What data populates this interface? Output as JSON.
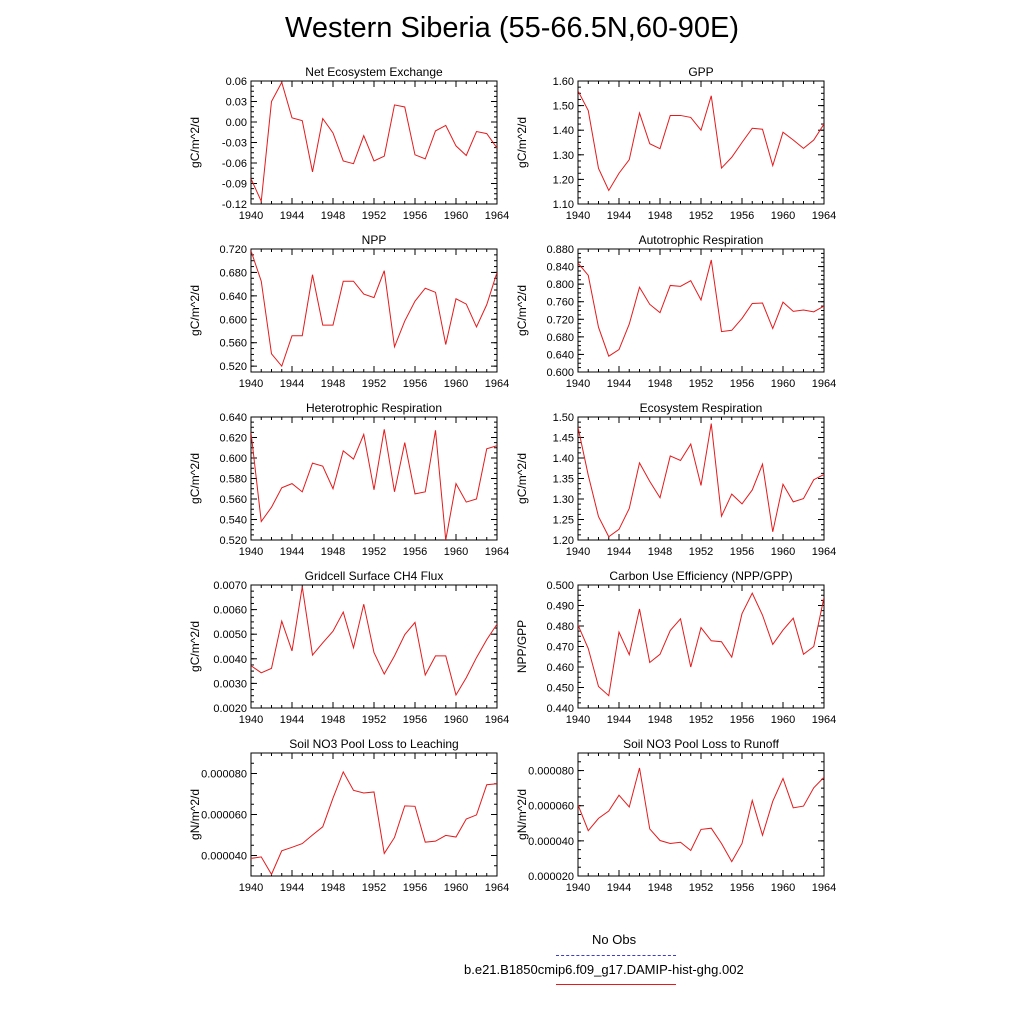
{
  "title": "Western Siberia (55-66.5N,60-90E)",
  "colors": {
    "model_line": "#e41a1c",
    "obs_line": "#3b3bcc",
    "axes": "#000000"
  },
  "legend": {
    "obs_label": "No Obs",
    "model_label": "b.e21.B1850cmip6.f09_g17.DAMIP-hist-ghg.002"
  },
  "chart_data": [
    {
      "type": "line",
      "title": "Net Ecosystem Exchange",
      "ylabel": "gC/m^2/d",
      "xlim": [
        1940,
        1964
      ],
      "xticks": [
        1940,
        1944,
        1948,
        1952,
        1956,
        1960,
        1964
      ],
      "xtick_labels": [
        "1940",
        "1944",
        "1948",
        "1952",
        "1956",
        "1960",
        "1964"
      ],
      "ylim": [
        -0.12,
        0.06
      ],
      "yticks": [
        -0.12,
        -0.09,
        -0.06,
        -0.03,
        0.0,
        0.03,
        0.06
      ],
      "ytick_labels": [
        "-0.12",
        "-0.09",
        "-0.06",
        "-0.03",
        "0.00",
        "0.03",
        "0.06"
      ],
      "x": [
        1940,
        1941,
        1942,
        1943,
        1944,
        1945,
        1946,
        1947,
        1948,
        1949,
        1950,
        1951,
        1952,
        1953,
        1954,
        1955,
        1956,
        1957,
        1958,
        1959,
        1960,
        1961,
        1962,
        1963,
        1964
      ],
      "values": [
        -0.083,
        -0.116,
        0.03,
        0.058,
        0.006,
        0.002,
        -0.073,
        0.005,
        -0.016,
        -0.057,
        -0.061,
        -0.02,
        -0.057,
        -0.05,
        0.025,
        0.022,
        -0.048,
        -0.054,
        -0.013,
        -0.005,
        -0.035,
        -0.049,
        -0.014,
        -0.017,
        -0.038
      ]
    },
    {
      "type": "line",
      "title": "GPP",
      "ylabel": "gC/m^2/d",
      "xlim": [
        1940,
        1964
      ],
      "xticks": [
        1940,
        1944,
        1948,
        1952,
        1956,
        1960,
        1964
      ],
      "xtick_labels": [
        "1940",
        "1944",
        "1948",
        "1952",
        "1956",
        "1960",
        "1964"
      ],
      "ylim": [
        1.1,
        1.6
      ],
      "yticks": [
        1.1,
        1.2,
        1.3,
        1.4,
        1.5,
        1.6
      ],
      "ytick_labels": [
        "1.10",
        "1.20",
        "1.30",
        "1.40",
        "1.50",
        "1.60"
      ],
      "x": [
        1940,
        1941,
        1942,
        1943,
        1944,
        1945,
        1946,
        1947,
        1948,
        1949,
        1950,
        1951,
        1952,
        1953,
        1954,
        1955,
        1956,
        1957,
        1958,
        1959,
        1960,
        1961,
        1962,
        1963,
        1964
      ],
      "values": [
        1.56,
        1.48,
        1.245,
        1.155,
        1.225,
        1.28,
        1.47,
        1.345,
        1.325,
        1.46,
        1.46,
        1.452,
        1.4,
        1.54,
        1.246,
        1.29,
        1.35,
        1.408,
        1.404,
        1.256,
        1.392,
        1.36,
        1.326,
        1.36,
        1.425
      ]
    },
    {
      "type": "line",
      "title": "NPP",
      "ylabel": "gC/m^2/d",
      "xlim": [
        1940,
        1964
      ],
      "xticks": [
        1940,
        1944,
        1948,
        1952,
        1956,
        1960,
        1964
      ],
      "xtick_labels": [
        "1940",
        "1944",
        "1948",
        "1952",
        "1956",
        "1960",
        "1964"
      ],
      "ylim": [
        0.51,
        0.72
      ],
      "yticks": [
        0.52,
        0.56,
        0.6,
        0.64,
        0.68,
        0.72
      ],
      "ytick_labels": [
        "0.520",
        "0.560",
        "0.600",
        "0.640",
        "0.680",
        "0.720"
      ],
      "x": [
        1940,
        1941,
        1942,
        1943,
        1944,
        1945,
        1946,
        1947,
        1948,
        1949,
        1950,
        1951,
        1952,
        1953,
        1954,
        1955,
        1956,
        1957,
        1958,
        1959,
        1960,
        1961,
        1962,
        1963,
        1964
      ],
      "values": [
        0.717,
        0.665,
        0.541,
        0.52,
        0.572,
        0.572,
        0.676,
        0.59,
        0.59,
        0.665,
        0.665,
        0.643,
        0.637,
        0.683,
        0.553,
        0.597,
        0.631,
        0.653,
        0.646,
        0.557,
        0.635,
        0.626,
        0.587,
        0.625,
        0.68
      ]
    },
    {
      "type": "line",
      "title": "Autotrophic Respiration",
      "ylabel": "gC/m^2/d",
      "xlim": [
        1940,
        1964
      ],
      "xticks": [
        1940,
        1944,
        1948,
        1952,
        1956,
        1960,
        1964
      ],
      "xtick_labels": [
        "1940",
        "1944",
        "1948",
        "1952",
        "1956",
        "1960",
        "1964"
      ],
      "ylim": [
        0.6,
        0.88
      ],
      "yticks": [
        0.6,
        0.64,
        0.68,
        0.72,
        0.76,
        0.8,
        0.84,
        0.88
      ],
      "ytick_labels": [
        "0.600",
        "0.640",
        "0.680",
        "0.720",
        "0.760",
        "0.800",
        "0.840",
        "0.880"
      ],
      "x": [
        1940,
        1941,
        1942,
        1943,
        1944,
        1945,
        1946,
        1947,
        1948,
        1949,
        1950,
        1951,
        1952,
        1953,
        1954,
        1955,
        1956,
        1957,
        1958,
        1959,
        1960,
        1961,
        1962,
        1963,
        1964
      ],
      "values": [
        0.848,
        0.82,
        0.702,
        0.636,
        0.651,
        0.709,
        0.793,
        0.754,
        0.735,
        0.797,
        0.795,
        0.808,
        0.764,
        0.855,
        0.692,
        0.695,
        0.722,
        0.756,
        0.757,
        0.699,
        0.759,
        0.738,
        0.741,
        0.737,
        0.75
      ]
    },
    {
      "type": "line",
      "title": "Heterotrophic Respiration",
      "ylabel": "gC/m^2/d",
      "xlim": [
        1940,
        1964
      ],
      "xticks": [
        1940,
        1944,
        1948,
        1952,
        1956,
        1960,
        1964
      ],
      "xtick_labels": [
        "1940",
        "1944",
        "1948",
        "1952",
        "1956",
        "1960",
        "1964"
      ],
      "ylim": [
        0.52,
        0.64
      ],
      "yticks": [
        0.52,
        0.54,
        0.56,
        0.58,
        0.6,
        0.62,
        0.64
      ],
      "ytick_labels": [
        "0.520",
        "0.540",
        "0.560",
        "0.580",
        "0.600",
        "0.620",
        "0.640"
      ],
      "x": [
        1940,
        1941,
        1942,
        1943,
        1944,
        1945,
        1946,
        1947,
        1948,
        1949,
        1950,
        1951,
        1952,
        1953,
        1954,
        1955,
        1956,
        1957,
        1958,
        1959,
        1960,
        1961,
        1962,
        1963,
        1964
      ],
      "values": [
        0.625,
        0.538,
        0.552,
        0.571,
        0.575,
        0.567,
        0.595,
        0.592,
        0.57,
        0.607,
        0.599,
        0.623,
        0.569,
        0.628,
        0.567,
        0.615,
        0.565,
        0.567,
        0.627,
        0.52,
        0.575,
        0.557,
        0.56,
        0.609,
        0.612
      ]
    },
    {
      "type": "line",
      "title": "Ecosystem Respiration",
      "ylabel": "gC/m^2/d",
      "xlim": [
        1940,
        1964
      ],
      "xticks": [
        1940,
        1944,
        1948,
        1952,
        1956,
        1960,
        1964
      ],
      "xtick_labels": [
        "1940",
        "1944",
        "1948",
        "1952",
        "1956",
        "1960",
        "1964"
      ],
      "ylim": [
        1.2,
        1.5
      ],
      "yticks": [
        1.2,
        1.25,
        1.3,
        1.35,
        1.4,
        1.45,
        1.5
      ],
      "ytick_labels": [
        "1.20",
        "1.25",
        "1.30",
        "1.35",
        "1.40",
        "1.45",
        "1.50"
      ],
      "x": [
        1940,
        1941,
        1942,
        1943,
        1944,
        1945,
        1946,
        1947,
        1948,
        1949,
        1950,
        1951,
        1952,
        1953,
        1954,
        1955,
        1956,
        1957,
        1958,
        1959,
        1960,
        1961,
        1962,
        1963,
        1964
      ],
      "values": [
        1.475,
        1.358,
        1.257,
        1.208,
        1.226,
        1.277,
        1.388,
        1.343,
        1.303,
        1.405,
        1.394,
        1.434,
        1.333,
        1.484,
        1.258,
        1.312,
        1.288,
        1.322,
        1.385,
        1.22,
        1.336,
        1.293,
        1.301,
        1.347,
        1.36
      ]
    },
    {
      "type": "line",
      "title": "Gridcell Surface CH4 Flux",
      "ylabel": "gC/m^2/d",
      "xlim": [
        1940,
        1964
      ],
      "xticks": [
        1940,
        1944,
        1948,
        1952,
        1956,
        1960,
        1964
      ],
      "xtick_labels": [
        "1940",
        "1944",
        "1948",
        "1952",
        "1956",
        "1960",
        "1964"
      ],
      "ylim": [
        0.002,
        0.007
      ],
      "yticks": [
        0.002,
        0.003,
        0.004,
        0.005,
        0.006,
        0.007
      ],
      "ytick_labels": [
        "0.0020",
        "0.0030",
        "0.0040",
        "0.0050",
        "0.0060",
        "0.0070"
      ],
      "x": [
        1940,
        1941,
        1942,
        1943,
        1944,
        1945,
        1946,
        1947,
        1948,
        1949,
        1950,
        1951,
        1952,
        1953,
        1954,
        1955,
        1956,
        1957,
        1958,
        1959,
        1960,
        1961,
        1962,
        1963,
        1964
      ],
      "values": [
        0.00372,
        0.00343,
        0.00361,
        0.00553,
        0.00432,
        0.00693,
        0.00415,
        0.00465,
        0.00512,
        0.0059,
        0.00445,
        0.00622,
        0.00425,
        0.00338,
        0.00412,
        0.00498,
        0.00548,
        0.00334,
        0.00412,
        0.00412,
        0.00253,
        0.00323,
        0.00405,
        0.00478,
        0.00541
      ]
    },
    {
      "type": "line",
      "title": "Carbon Use Efficiency (NPP/GPP)",
      "ylabel": "NPP/GPP",
      "xlim": [
        1940,
        1964
      ],
      "xticks": [
        1940,
        1944,
        1948,
        1952,
        1956,
        1960,
        1964
      ],
      "xtick_labels": [
        "1940",
        "1944",
        "1948",
        "1952",
        "1956",
        "1960",
        "1964"
      ],
      "ylim": [
        0.44,
        0.5
      ],
      "yticks": [
        0.44,
        0.45,
        0.46,
        0.47,
        0.48,
        0.49,
        0.5
      ],
      "ytick_labels": [
        "0.440",
        "0.450",
        "0.460",
        "0.470",
        "0.480",
        "0.490",
        "0.500"
      ],
      "x": [
        1940,
        1941,
        1942,
        1943,
        1944,
        1945,
        1946,
        1947,
        1948,
        1949,
        1950,
        1951,
        1952,
        1953,
        1954,
        1955,
        1956,
        1957,
        1958,
        1959,
        1960,
        1961,
        1962,
        1963,
        1964
      ],
      "values": [
        0.4805,
        0.469,
        0.4505,
        0.446,
        0.477,
        0.466,
        0.4883,
        0.4622,
        0.4662,
        0.4778,
        0.4835,
        0.46,
        0.4792,
        0.4728,
        0.4723,
        0.4648,
        0.486,
        0.496,
        0.4853,
        0.471,
        0.478,
        0.4838,
        0.4662,
        0.47,
        0.494
      ]
    },
    {
      "type": "line",
      "title": "Soil NO3 Pool Loss to Leaching",
      "ylabel": "gN/m^2/d",
      "xlim": [
        1940,
        1964
      ],
      "xticks": [
        1940,
        1944,
        1948,
        1952,
        1956,
        1960,
        1964
      ],
      "xtick_labels": [
        "1940",
        "1944",
        "1948",
        "1952",
        "1956",
        "1960",
        "1964"
      ],
      "ylim": [
        3e-05,
        9e-05
      ],
      "yticks": [
        4e-05,
        6e-05,
        8e-05
      ],
      "ytick_labels": [
        "0.000040",
        "0.000060",
        "0.000080"
      ],
      "x": [
        1940,
        1941,
        1942,
        1943,
        1944,
        1945,
        1946,
        1947,
        1948,
        1949,
        1950,
        1951,
        1952,
        1953,
        1954,
        1955,
        1956,
        1957,
        1958,
        1959,
        1960,
        1961,
        1962,
        1963,
        1964
      ],
      "values": [
        3.86e-05,
        3.93e-05,
        3.08e-05,
        4.23e-05,
        4.4e-05,
        4.58e-05,
        5e-05,
        5.4e-05,
        6.8e-05,
        8.08e-05,
        7.18e-05,
        7.05e-05,
        7.1e-05,
        4.1e-05,
        4.88e-05,
        6.42e-05,
        6.4e-05,
        4.65e-05,
        4.7e-05,
        4.98e-05,
        4.9e-05,
        5.78e-05,
        5.98e-05,
        7.45e-05,
        7.5e-05
      ]
    },
    {
      "type": "line",
      "title": "Soil NO3 Pool Loss to Runoff",
      "ylabel": "gN/m^2/d",
      "xlim": [
        1940,
        1964
      ],
      "xticks": [
        1940,
        1944,
        1948,
        1952,
        1956,
        1960,
        1964
      ],
      "xtick_labels": [
        "1940",
        "1944",
        "1948",
        "1952",
        "1956",
        "1960",
        "1964"
      ],
      "ylim": [
        2e-05,
        9e-05
      ],
      "yticks": [
        2e-05,
        4e-05,
        6e-05,
        8e-05
      ],
      "ytick_labels": [
        "0.000020",
        "0.000040",
        "0.000060",
        "0.000080"
      ],
      "x": [
        1940,
        1941,
        1942,
        1943,
        1944,
        1945,
        1946,
        1947,
        1948,
        1949,
        1950,
        1951,
        1952,
        1953,
        1954,
        1955,
        1956,
        1957,
        1958,
        1959,
        1960,
        1961,
        1962,
        1963,
        1964
      ],
      "values": [
        6.05e-05,
        4.58e-05,
        5.28e-05,
        5.7e-05,
        6.6e-05,
        5.93e-05,
        8.15e-05,
        4.68e-05,
        4.02e-05,
        3.85e-05,
        3.92e-05,
        3.45e-05,
        4.65e-05,
        4.72e-05,
        3.85e-05,
        2.82e-05,
        3.85e-05,
        6.3e-05,
        4.32e-05,
        6.25e-05,
        7.55e-05,
        5.88e-05,
        5.98e-05,
        7.02e-05,
        7.62e-05
      ]
    }
  ]
}
